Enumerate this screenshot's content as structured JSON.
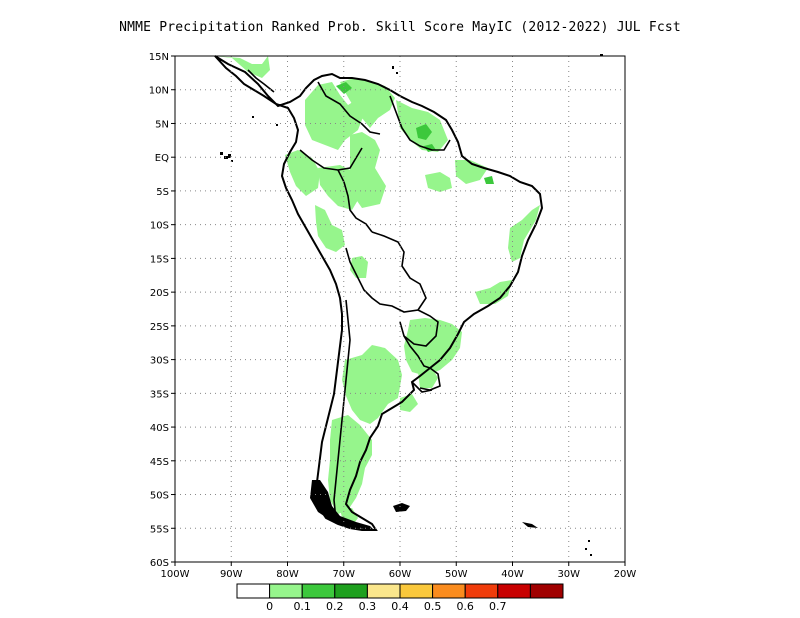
{
  "title": "NMME  Precipitation Ranked Prob. Skill Score MayIC (2012-2022) JUL Fcst",
  "lat_labels": [
    "15N",
    "10N",
    "5N",
    "EQ",
    "5S",
    "10S",
    "15S",
    "20S",
    "25S",
    "30S",
    "35S",
    "40S",
    "45S",
    "50S",
    "55S",
    "60S"
  ],
  "lon_labels": [
    "100W",
    "90W",
    "80W",
    "70W",
    "60W",
    "50W",
    "40W",
    "30W",
    "20W"
  ],
  "colorbar": {
    "colors": [
      "#ffffff",
      "#96f58c",
      "#3cc83c",
      "#1ea01e",
      "#fae68c",
      "#fac83c",
      "#fa8c1e",
      "#f03c0a",
      "#c80000",
      "#a00000"
    ],
    "labels": [
      "0",
      "0.1",
      "0.2",
      "0.3",
      "0.4",
      "0.5",
      "0.6",
      "0.7"
    ]
  },
  "map": {
    "projection": "lat-lon",
    "lon_range": [
      -100,
      -20
    ],
    "lat_range": [
      -60,
      15
    ],
    "gridlines": "dotted",
    "fill_color": "#96f58c",
    "dark_fill_color": "#3cc83c"
  }
}
